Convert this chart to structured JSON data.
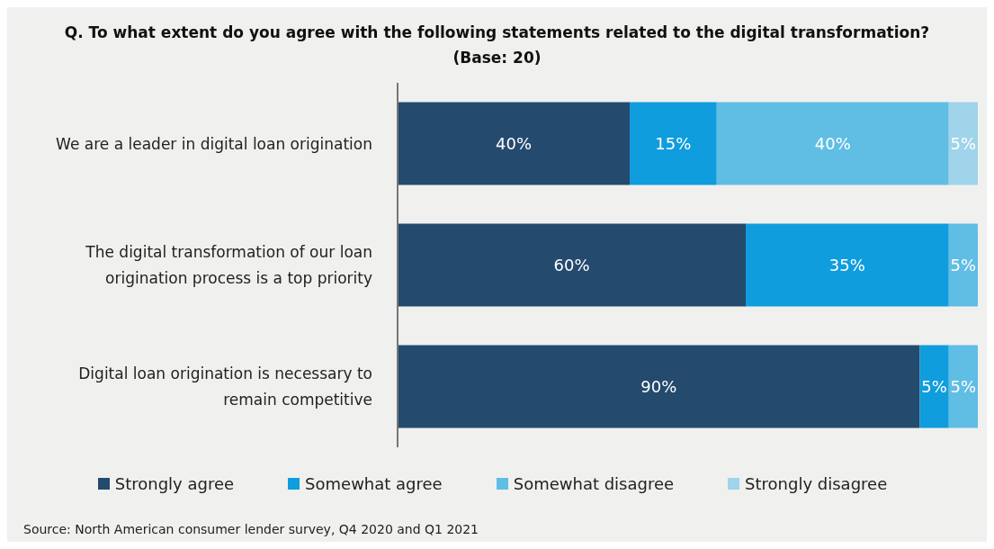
{
  "chart_data": {
    "type": "bar",
    "orientation": "horizontal",
    "stacked": true,
    "title": "Q. To what extent do you agree with the following statements related to the digital transformation?",
    "subtitle": "(Base: 20)",
    "categories": [
      "We are a leader in digital loan origination",
      "The digital transformation of our loan origination process is a top priority",
      "Digital loan origination is necessary to remain competitive"
    ],
    "series": [
      {
        "name": "Strongly agree",
        "color": "#244a6e",
        "values": [
          40,
          60,
          90
        ],
        "value_labels": [
          "40%",
          "60%",
          "90%"
        ]
      },
      {
        "name": "Somewhat agree",
        "color": "#0f9ddd",
        "values": [
          15,
          35,
          5
        ],
        "value_labels": [
          "15%",
          "35%",
          "5%"
        ]
      },
      {
        "name": "Somewhat disagree",
        "color": "#60bde4",
        "values": [
          40,
          5,
          5
        ],
        "value_labels": [
          "40%",
          "5%",
          "5%"
        ]
      },
      {
        "name": "Strongly disagree",
        "color": "#a0d4ea",
        "values": [
          5,
          0,
          0
        ],
        "value_labels": [
          "5%",
          null,
          null
        ]
      }
    ],
    "xlim": [
      0,
      100
    ],
    "legend": "bottom",
    "annotations": [
      "Source: North American consumer lender survey, Q4 2020 and Q1 2021"
    ]
  }
}
